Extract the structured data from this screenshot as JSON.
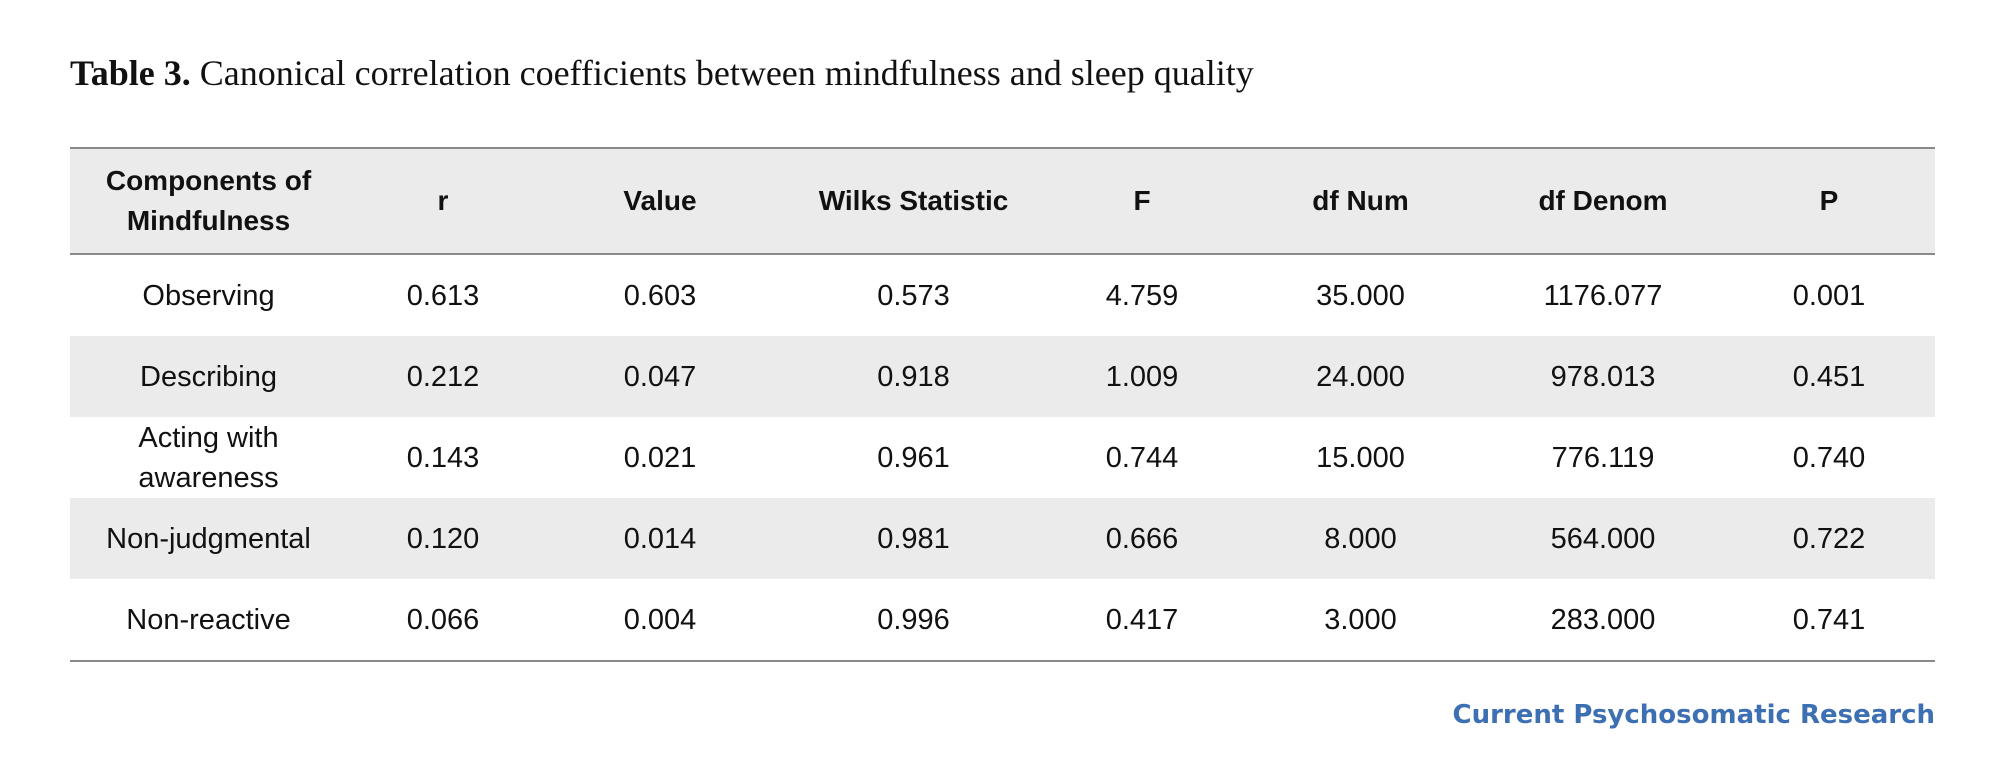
{
  "caption": {
    "label": "Table 3.",
    "text": " Canonical correlation coefficients between mindfulness and sleep quality"
  },
  "table": {
    "headers": [
      "Components of Mindfulness",
      "r",
      "Value",
      "Wilks Statistic",
      "F",
      "df Num",
      "df Denom",
      "P"
    ],
    "rows": [
      [
        "Observing",
        "0.613",
        "0.603",
        "0.573",
        "4.759",
        "35.000",
        "1176.077",
        "0.001"
      ],
      [
        "Describing",
        "0.212",
        "0.047",
        "0.918",
        "1.009",
        "24.000",
        "978.013",
        "0.451"
      ],
      [
        "Acting with awareness",
        "0.143",
        "0.021",
        "0.961",
        "0.744",
        "15.000",
        "776.119",
        "0.740"
      ],
      [
        "Non-judgmental",
        "0.120",
        "0.014",
        "0.981",
        "0.666",
        "8.000",
        "564.000",
        "0.722"
      ],
      [
        "Non-reactive",
        "0.066",
        "0.004",
        "0.996",
        "0.417",
        "3.000",
        "283.000",
        "0.741"
      ]
    ]
  },
  "journal_logo": "Current Psychosomatic Research",
  "colors": {
    "header_bg": "#ebebeb",
    "shaded_row_bg": "#ebebeb",
    "rule": "#8a8a8a",
    "logo": "#3d6fb3"
  }
}
